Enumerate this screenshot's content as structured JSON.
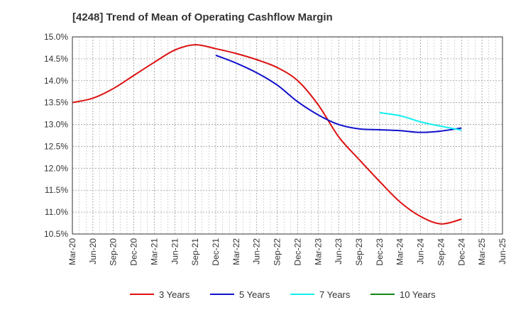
{
  "chart_data": {
    "type": "line",
    "title": "[4248]  Trend of Mean of Operating Cashflow Margin",
    "xlabel": "",
    "ylabel": "",
    "ylim": [
      10.5,
      15.0
    ],
    "y_ticks": [
      "10.5%",
      "11.0%",
      "11.5%",
      "12.0%",
      "12.5%",
      "13.0%",
      "13.5%",
      "14.0%",
      "14.5%",
      "15.0%"
    ],
    "categories": [
      "Mar-20",
      "Jun-20",
      "Sep-20",
      "Dec-20",
      "Mar-21",
      "Jun-21",
      "Sep-21",
      "Dec-21",
      "Mar-22",
      "Jun-22",
      "Sep-22",
      "Dec-22",
      "Mar-23",
      "Jun-23",
      "Sep-23",
      "Dec-23",
      "Mar-24",
      "Jun-24",
      "Sep-24",
      "Dec-24",
      "Mar-25",
      "Jun-25"
    ],
    "grid": true,
    "legend_position": "bottom",
    "series": [
      {
        "name": "3 Years",
        "color": "#dd1111",
        "values": [
          13.5,
          13.6,
          13.82,
          14.12,
          14.42,
          14.7,
          14.82,
          14.73,
          14.62,
          14.48,
          14.3,
          14.0,
          13.45,
          12.72,
          12.2,
          11.7,
          11.23,
          10.9,
          10.73,
          10.84,
          null,
          null
        ]
      },
      {
        "name": "5 Years",
        "color": "#1111cc",
        "values": [
          null,
          null,
          null,
          null,
          null,
          null,
          null,
          14.58,
          14.4,
          14.18,
          13.9,
          13.52,
          13.22,
          13.0,
          12.9,
          12.88,
          12.86,
          12.82,
          12.85,
          12.92,
          null,
          null
        ]
      },
      {
        "name": "7 Years",
        "color": "#11eeee",
        "values": [
          null,
          null,
          null,
          null,
          null,
          null,
          null,
          null,
          null,
          null,
          null,
          null,
          null,
          null,
          null,
          13.27,
          13.2,
          13.06,
          12.96,
          12.87,
          null,
          null
        ]
      },
      {
        "name": "10 Years",
        "color": "#118811",
        "values": [
          null,
          null,
          null,
          null,
          null,
          null,
          null,
          null,
          null,
          null,
          null,
          null,
          null,
          null,
          null,
          null,
          null,
          null,
          null,
          null,
          null,
          null
        ]
      }
    ]
  }
}
